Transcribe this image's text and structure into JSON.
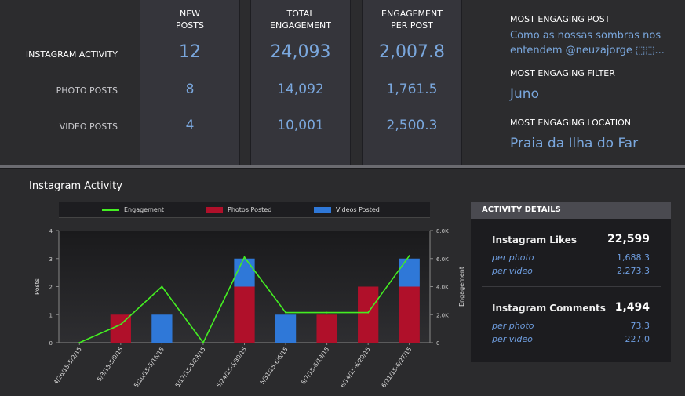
{
  "summary": {
    "columns": [
      {
        "header_line1": "NEW",
        "header_line2": "POSTS",
        "values": [
          "12",
          "8",
          "4"
        ]
      },
      {
        "header_line1": "TOTAL",
        "header_line2": "ENGAGEMENT",
        "values": [
          "24,093",
          "14,092",
          "10,001"
        ]
      },
      {
        "header_line1": "ENGAGEMENT",
        "header_line2": "PER POST",
        "values": [
          "2,007.8",
          "1,761.5",
          "2,500.3"
        ]
      }
    ],
    "row_labels": [
      "INSTAGRAM ACTIVITY",
      "PHOTO POSTS",
      "VIDEO POSTS"
    ]
  },
  "highlights": {
    "post_label": "MOST ENGAGING POST",
    "post_value_line1": "Como as nossas sombras nos",
    "post_value_line2": "entendem @neuzajorge ⬚⬚...",
    "filter_label": "MOST ENGAGING FILTER",
    "filter_value": "Juno",
    "location_label": "MOST ENGAGING LOCATION",
    "location_value": "Praia da Ilha do Far"
  },
  "section_title": "Instagram Activity",
  "legend": {
    "engagement": "Engagement",
    "photos": "Photos Posted",
    "videos": "Videos Posted"
  },
  "colors": {
    "engagement": "#44ee22",
    "photos": "#b0102a",
    "videos": "#2f78d8",
    "accent_text": "#7aa7dd"
  },
  "chart_data": {
    "type": "bar",
    "categories": [
      "4/26/15-5/2/15",
      "5/3/15-5/9/15",
      "5/10/15-5/16/15",
      "5/17/15-5/23/15",
      "5/24/15-5/30/15",
      "5/31/15-6/6/15",
      "6/7/15-6/13/15",
      "6/14/15-6/20/15",
      "6/21/15-6/27/15"
    ],
    "series": [
      {
        "name": "Photos Posted",
        "values": [
          0,
          1,
          0,
          0,
          2,
          0,
          1,
          2,
          2
        ]
      },
      {
        "name": "Videos Posted",
        "values": [
          0,
          0,
          1,
          0,
          1,
          1,
          0,
          0,
          1
        ]
      },
      {
        "name": "Engagement",
        "values": [
          0,
          1300,
          4000,
          0,
          6100,
          2150,
          2150,
          2150,
          6200
        ]
      }
    ],
    "ylabel": "Posts",
    "y2label": "Engagement",
    "ylim": [
      0,
      4
    ],
    "y2lim": [
      0,
      8000
    ],
    "yticks": [
      "0",
      "1",
      "2",
      "3",
      "4"
    ],
    "y2ticks": [
      "0",
      "2.0K",
      "4.0K",
      "6.0K",
      "8.0K"
    ]
  },
  "details": {
    "header": "ACTIVITY DETAILS",
    "likes_label": "Instagram Likes",
    "likes_value": "22,599",
    "likes_per_photo_label": "per photo",
    "likes_per_photo": "1,688.3",
    "likes_per_video_label": "per video",
    "likes_per_video": "2,273.3",
    "comments_label": "Instagram Comments",
    "comments_value": "1,494",
    "comments_per_photo_label": "per photo",
    "comments_per_photo": "73.3",
    "comments_per_video_label": "per video",
    "comments_per_video": "227.0"
  }
}
